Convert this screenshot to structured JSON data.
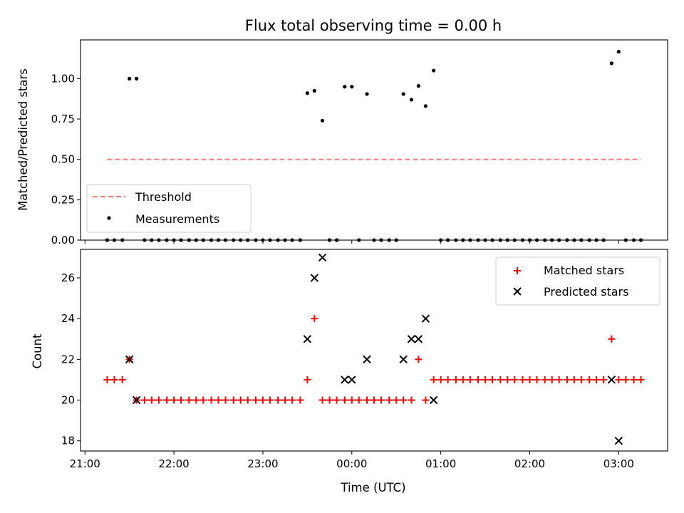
{
  "chart_data": [
    {
      "type": "scatter",
      "title": "Flux total observing time = 0.00 h",
      "xlabel": "",
      "ylabel": "Matched/Predicted stars",
      "ylim": [
        0,
        1.24
      ],
      "yticks": [
        "0.00",
        "0.25",
        "0.50",
        "0.75",
        "1.00"
      ],
      "x_range_hours": [
        -3.05,
        3.55
      ],
      "legend": {
        "placement": "lower-left",
        "entries": [
          "Threshold",
          "Measurements"
        ]
      },
      "threshold": {
        "name": "Threshold",
        "value": 0.5,
        "x": [
          -2.75,
          3.25
        ],
        "color": "#f08080"
      },
      "series": [
        {
          "name": "Measurements",
          "color": "#000000",
          "points": [
            [
              -2.75,
              0
            ],
            [
              -2.67,
              0
            ],
            [
              -2.58,
              0
            ],
            [
              -2.5,
              1.0
            ],
            [
              -2.42,
              1.0
            ],
            [
              -2.33,
              0
            ],
            [
              -2.25,
              0
            ],
            [
              -2.17,
              0
            ],
            [
              -2.08,
              0
            ],
            [
              -2.0,
              0
            ],
            [
              -1.92,
              0
            ],
            [
              -1.83,
              0
            ],
            [
              -1.75,
              0
            ],
            [
              -1.67,
              0
            ],
            [
              -1.58,
              0
            ],
            [
              -1.5,
              0
            ],
            [
              -1.42,
              0
            ],
            [
              -1.33,
              0
            ],
            [
              -1.25,
              0
            ],
            [
              -1.17,
              0
            ],
            [
              -1.08,
              0
            ],
            [
              -1.0,
              0
            ],
            [
              -0.92,
              0
            ],
            [
              -0.83,
              0
            ],
            [
              -0.75,
              0
            ],
            [
              -0.67,
              0
            ],
            [
              -0.58,
              0
            ],
            [
              -0.5,
              0.91
            ],
            [
              -0.42,
              0.925
            ],
            [
              -0.33,
              0.74
            ],
            [
              -0.25,
              0
            ],
            [
              -0.17,
              0
            ],
            [
              -0.08,
              0.95
            ],
            [
              0.0,
              0.95
            ],
            [
              0.08,
              0
            ],
            [
              0.17,
              0.905
            ],
            [
              0.25,
              0
            ],
            [
              0.33,
              0
            ],
            [
              0.42,
              0
            ],
            [
              0.5,
              0
            ],
            [
              0.58,
              0.905
            ],
            [
              0.67,
              0.87
            ],
            [
              0.75,
              0.955
            ],
            [
              0.83,
              0.83
            ],
            [
              0.92,
              1.05
            ],
            [
              1.0,
              0
            ],
            [
              1.08,
              0
            ],
            [
              1.17,
              0
            ],
            [
              1.25,
              0
            ],
            [
              1.33,
              0
            ],
            [
              1.42,
              0
            ],
            [
              1.5,
              0
            ],
            [
              1.58,
              0
            ],
            [
              1.67,
              0
            ],
            [
              1.75,
              0
            ],
            [
              1.83,
              0
            ],
            [
              1.92,
              0
            ],
            [
              2.0,
              0
            ],
            [
              2.08,
              0
            ],
            [
              2.17,
              0
            ],
            [
              2.25,
              0
            ],
            [
              2.33,
              0
            ],
            [
              2.42,
              0
            ],
            [
              2.5,
              0
            ],
            [
              2.58,
              0
            ],
            [
              2.67,
              0
            ],
            [
              2.75,
              0
            ],
            [
              2.83,
              0
            ],
            [
              2.92,
              1.095
            ],
            [
              3.0,
              1.167
            ],
            [
              3.08,
              0
            ],
            [
              3.17,
              0
            ],
            [
              3.25,
              0
            ]
          ]
        }
      ]
    },
    {
      "type": "scatter",
      "title": "",
      "xlabel": "Time (UTC)",
      "ylabel": "Count",
      "ylim": [
        17.5,
        27.4
      ],
      "yticks": [
        "18",
        "20",
        "22",
        "24",
        "26"
      ],
      "x_range_hours": [
        -3.05,
        3.55
      ],
      "xticks": [
        "21:00",
        "22:00",
        "23:00",
        "00:00",
        "01:00",
        "02:00",
        "03:00"
      ],
      "legend": {
        "placement": "top-right",
        "entries": [
          "Matched stars",
          "Predicted stars"
        ]
      },
      "series": [
        {
          "name": "Matched stars",
          "marker": "+",
          "color": "#ff0000",
          "points": [
            [
              -2.75,
              21
            ],
            [
              -2.67,
              21
            ],
            [
              -2.58,
              21
            ],
            [
              -2.5,
              22
            ],
            [
              -2.42,
              20
            ],
            [
              -2.33,
              20
            ],
            [
              -2.25,
              20
            ],
            [
              -2.17,
              20
            ],
            [
              -2.08,
              20
            ],
            [
              -2.0,
              20
            ],
            [
              -1.92,
              20
            ],
            [
              -1.83,
              20
            ],
            [
              -1.75,
              20
            ],
            [
              -1.67,
              20
            ],
            [
              -1.58,
              20
            ],
            [
              -1.5,
              20
            ],
            [
              -1.42,
              20
            ],
            [
              -1.33,
              20
            ],
            [
              -1.25,
              20
            ],
            [
              -1.17,
              20
            ],
            [
              -1.08,
              20
            ],
            [
              -1.0,
              20
            ],
            [
              -0.92,
              20
            ],
            [
              -0.83,
              20
            ],
            [
              -0.75,
              20
            ],
            [
              -0.67,
              20
            ],
            [
              -0.58,
              20
            ],
            [
              -0.5,
              21
            ],
            [
              -0.42,
              24
            ],
            [
              -0.33,
              20
            ],
            [
              -0.25,
              20
            ],
            [
              -0.17,
              20
            ],
            [
              -0.08,
              20
            ],
            [
              0.0,
              20
            ],
            [
              0.08,
              20
            ],
            [
              0.17,
              20
            ],
            [
              0.25,
              20
            ],
            [
              0.33,
              20
            ],
            [
              0.42,
              20
            ],
            [
              0.5,
              20
            ],
            [
              0.58,
              20
            ],
            [
              0.67,
              20
            ],
            [
              0.75,
              22
            ],
            [
              0.83,
              20
            ],
            [
              0.92,
              21
            ],
            [
              1.0,
              21
            ],
            [
              1.08,
              21
            ],
            [
              1.17,
              21
            ],
            [
              1.25,
              21
            ],
            [
              1.33,
              21
            ],
            [
              1.42,
              21
            ],
            [
              1.5,
              21
            ],
            [
              1.58,
              21
            ],
            [
              1.67,
              21
            ],
            [
              1.75,
              21
            ],
            [
              1.83,
              21
            ],
            [
              1.92,
              21
            ],
            [
              2.0,
              21
            ],
            [
              2.08,
              21
            ],
            [
              2.17,
              21
            ],
            [
              2.25,
              21
            ],
            [
              2.33,
              21
            ],
            [
              2.42,
              21
            ],
            [
              2.5,
              21
            ],
            [
              2.58,
              21
            ],
            [
              2.67,
              21
            ],
            [
              2.75,
              21
            ],
            [
              2.83,
              21
            ],
            [
              2.92,
              23
            ],
            [
              3.0,
              21
            ],
            [
              3.08,
              21
            ],
            [
              3.17,
              21
            ],
            [
              3.25,
              21
            ]
          ]
        },
        {
          "name": "Predicted stars",
          "marker": "x",
          "color": "#000000",
          "points": [
            [
              -2.5,
              22
            ],
            [
              -2.42,
              20
            ],
            [
              -0.5,
              23
            ],
            [
              -0.42,
              26
            ],
            [
              -0.33,
              27
            ],
            [
              -0.08,
              21
            ],
            [
              0.0,
              21
            ],
            [
              0.17,
              22
            ],
            [
              0.58,
              22
            ],
            [
              0.67,
              23
            ],
            [
              0.75,
              23
            ],
            [
              0.83,
              24
            ],
            [
              0.92,
              20
            ],
            [
              2.92,
              21
            ],
            [
              3.0,
              18
            ]
          ]
        }
      ]
    }
  ]
}
